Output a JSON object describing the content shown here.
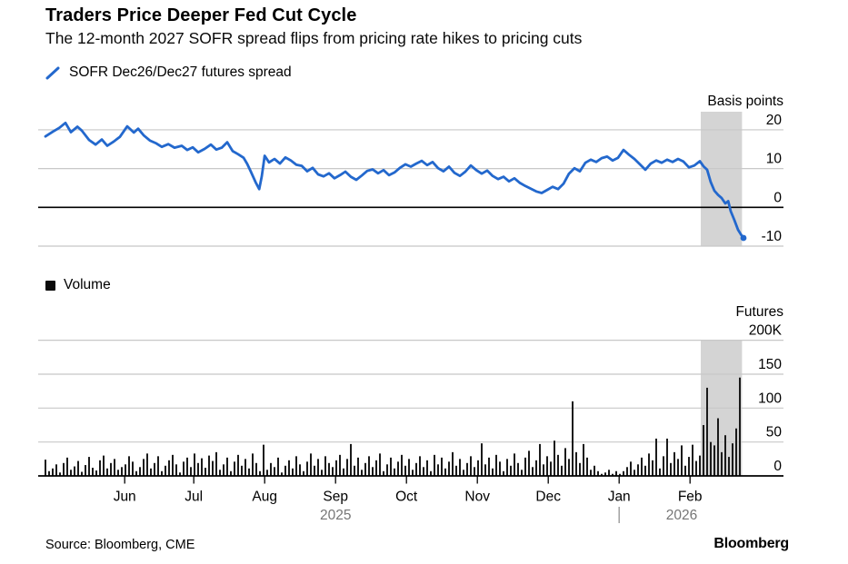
{
  "header": {
    "title": "Traders Price Deeper Fed Cut Cycle",
    "subtitle": "The 12-month 2027 SOFR spread flips from pricing rate hikes to pricing cuts"
  },
  "legends": {
    "spread": "SOFR Dec26/Dec27 futures spread",
    "volume": "Volume"
  },
  "footer": {
    "source": "Source: Bloomberg, CME",
    "brand": "Bloomberg"
  },
  "colors": {
    "line_blue": "#2368cd",
    "grid_gray": "#c8c8c8",
    "band_gray": "#d4d4d4",
    "bar_black": "#1a1a1a",
    "year_gray": "#767676",
    "axis_black": "#000000"
  },
  "chart_data": [
    {
      "type": "line",
      "name": "SOFR Dec26/Dec27 futures spread",
      "ylabel": "Basis points",
      "ylim": [
        -13,
        24.7
      ],
      "grid": true,
      "legend_position": "top-left",
      "yticks": [
        {
          "v": 20,
          "label": "20"
        },
        {
          "v": 10,
          "label": "10"
        },
        {
          "v": 0,
          "label": "0"
        },
        {
          "v": -10,
          "label": "-10"
        }
      ],
      "zero_line": 0,
      "highlight_band_t": [
        180.25,
        191.6
      ],
      "x_unit": "trading-day index, May 2025 = 0",
      "points": [
        [
          0,
          18.3
        ],
        [
          2,
          19.5
        ],
        [
          3.8,
          20.5
        ],
        [
          5.5,
          21.8
        ],
        [
          7,
          19.4
        ],
        [
          8.8,
          20.8
        ],
        [
          10,
          19.8
        ],
        [
          12,
          17.4
        ],
        [
          13.8,
          16.2
        ],
        [
          15.5,
          17.5
        ],
        [
          17,
          15.9
        ],
        [
          18.8,
          17.0
        ],
        [
          20.5,
          18.2
        ],
        [
          22.5,
          20.9
        ],
        [
          24.3,
          19.3
        ],
        [
          25.5,
          20.3
        ],
        [
          27,
          18.6
        ],
        [
          28.8,
          17.2
        ],
        [
          30.5,
          16.5
        ],
        [
          32,
          15.6
        ],
        [
          33.8,
          16.3
        ],
        [
          35.5,
          15.4
        ],
        [
          37.5,
          15.9
        ],
        [
          39,
          14.8
        ],
        [
          40.5,
          15.5
        ],
        [
          42,
          14.2
        ],
        [
          43.8,
          15.1
        ],
        [
          45.5,
          16.2
        ],
        [
          47,
          14.9
        ],
        [
          48.5,
          15.4
        ],
        [
          50,
          16.8
        ],
        [
          51.5,
          14.5
        ],
        [
          53,
          13.7
        ],
        [
          54.5,
          12.8
        ],
        [
          55.5,
          11.2
        ],
        [
          56.5,
          9.2
        ],
        [
          57.8,
          6.5
        ],
        [
          58.8,
          4.7
        ],
        [
          59.5,
          8.0
        ],
        [
          60.3,
          13.3
        ],
        [
          61.5,
          11.6
        ],
        [
          63,
          12.5
        ],
        [
          64.5,
          11.3
        ],
        [
          66,
          12.9
        ],
        [
          67.5,
          12.1
        ],
        [
          69,
          11.0
        ],
        [
          70.5,
          10.7
        ],
        [
          72,
          9.3
        ],
        [
          73.5,
          10.2
        ],
        [
          75,
          8.5
        ],
        [
          76.5,
          8.0
        ],
        [
          78,
          8.8
        ],
        [
          79.5,
          7.5
        ],
        [
          81,
          8.3
        ],
        [
          82.5,
          9.2
        ],
        [
          84,
          7.9
        ],
        [
          85.5,
          7.1
        ],
        [
          87,
          8.2
        ],
        [
          88.5,
          9.4
        ],
        [
          90,
          9.8
        ],
        [
          91.5,
          8.8
        ],
        [
          93,
          9.6
        ],
        [
          94.5,
          8.3
        ],
        [
          96,
          9.0
        ],
        [
          97.5,
          10.2
        ],
        [
          99,
          11.1
        ],
        [
          100.5,
          10.5
        ],
        [
          102,
          11.3
        ],
        [
          103.5,
          12.0
        ],
        [
          105,
          10.9
        ],
        [
          106.5,
          11.7
        ],
        [
          108,
          10.1
        ],
        [
          109.5,
          9.3
        ],
        [
          111,
          10.5
        ],
        [
          112.5,
          8.9
        ],
        [
          114,
          8.1
        ],
        [
          115.5,
          9.2
        ],
        [
          117,
          10.8
        ],
        [
          118.5,
          9.6
        ],
        [
          120,
          8.7
        ],
        [
          121.5,
          9.5
        ],
        [
          123,
          8.1
        ],
        [
          124.5,
          7.3
        ],
        [
          126,
          7.9
        ],
        [
          127.5,
          6.7
        ],
        [
          129,
          7.5
        ],
        [
          130.5,
          6.3
        ],
        [
          132,
          5.5
        ],
        [
          133.5,
          4.8
        ],
        [
          135,
          4.1
        ],
        [
          136.5,
          3.7
        ],
        [
          138,
          4.5
        ],
        [
          139.5,
          5.3
        ],
        [
          141,
          4.7
        ],
        [
          142.5,
          6.1
        ],
        [
          144,
          8.7
        ],
        [
          145.5,
          10.1
        ],
        [
          147,
          9.3
        ],
        [
          148.5,
          11.5
        ],
        [
          150,
          12.3
        ],
        [
          151.5,
          11.7
        ],
        [
          153,
          12.7
        ],
        [
          154.5,
          13.1
        ],
        [
          156,
          12.1
        ],
        [
          157.5,
          12.8
        ],
        [
          159,
          14.8
        ],
        [
          160.5,
          13.6
        ],
        [
          162,
          12.5
        ],
        [
          163.5,
          11.1
        ],
        [
          165,
          9.7
        ],
        [
          166.5,
          11.3
        ],
        [
          168,
          12.1
        ],
        [
          169.5,
          11.5
        ],
        [
          171,
          12.3
        ],
        [
          172.5,
          11.7
        ],
        [
          174,
          12.5
        ],
        [
          175.5,
          11.8
        ],
        [
          177,
          10.3
        ],
        [
          178.5,
          10.8
        ],
        [
          180,
          11.9
        ],
        [
          181,
          10.6
        ],
        [
          182,
          9.7
        ],
        [
          183,
          6.5
        ],
        [
          184,
          4.3
        ],
        [
          185,
          3.2
        ],
        [
          186,
          2.4
        ],
        [
          187,
          1.0
        ],
        [
          187.8,
          1.6
        ],
        [
          188.5,
          -1.0
        ],
        [
          189.5,
          -3.3
        ],
        [
          190.5,
          -5.8
        ],
        [
          191.3,
          -7.0
        ],
        [
          192,
          -7.9
        ]
      ]
    },
    {
      "type": "bar",
      "name": "Volume",
      "ylabel": "Futures",
      "ylim": [
        0,
        200
      ],
      "grid": true,
      "yticks": [
        {
          "v": 200,
          "label": "200K"
        },
        {
          "v": 150,
          "label": "150"
        },
        {
          "v": 100,
          "label": "100"
        },
        {
          "v": 50,
          "label": "50"
        },
        {
          "v": 0,
          "label": "0"
        }
      ],
      "highlight_band_t": [
        180.25,
        191.6
      ],
      "x_unit": "trading-day index, May 2025 = 0 (thousands of contracts)",
      "values": [
        24,
        7,
        11,
        17,
        5,
        19,
        27,
        9,
        14,
        22,
        6,
        16,
        28,
        12,
        8,
        23,
        30,
        11,
        19,
        25,
        9,
        13,
        17,
        29,
        21,
        7,
        13,
        25,
        33,
        11,
        19,
        29,
        7,
        15,
        23,
        31,
        17,
        5,
        21,
        27,
        13,
        33,
        19,
        26,
        12,
        30,
        22,
        35,
        9,
        17,
        27,
        7,
        21,
        31,
        15,
        25,
        11,
        33,
        19,
        7,
        46,
        9,
        19,
        13,
        27,
        5,
        15,
        23,
        11,
        29,
        17,
        7,
        21,
        33,
        15,
        25,
        9,
        29,
        19,
        13,
        23,
        31,
        11,
        25,
        47,
        15,
        27,
        9,
        19,
        29,
        13,
        23,
        33,
        7,
        17,
        27,
        11,
        21,
        31,
        15,
        25,
        9,
        19,
        29,
        13,
        23,
        7,
        31,
        17,
        27,
        11,
        21,
        35,
        15,
        25,
        9,
        19,
        29,
        13,
        23,
        48,
        17,
        27,
        11,
        31,
        21,
        7,
        25,
        15,
        33,
        19,
        9,
        27,
        37,
        13,
        23,
        47,
        17,
        29,
        21,
        52,
        31,
        15,
        41,
        25,
        110,
        35,
        19,
        47,
        27,
        9,
        15,
        7,
        3,
        5,
        9,
        3,
        7,
        3,
        7,
        13,
        21,
        9,
        17,
        27,
        15,
        33,
        23,
        55,
        11,
        29,
        55,
        19,
        35,
        25,
        45,
        15,
        28,
        46,
        22,
        30,
        75,
        130,
        50,
        45,
        85,
        35,
        60,
        28,
        48,
        70,
        145
      ],
      "months": [
        {
          "label": "Jun",
          "t": 21.8
        },
        {
          "label": "Jul",
          "t": 40.8
        },
        {
          "label": "Aug",
          "t": 60.3
        },
        {
          "label": "Sep",
          "t": 79.8
        },
        {
          "label": "Oct",
          "t": 99.3
        },
        {
          "label": "Nov",
          "t": 118.8
        },
        {
          "label": "Dec",
          "t": 138.3
        },
        {
          "label": "Jan",
          "t": 157.8
        },
        {
          "label": "Feb",
          "t": 177.3
        }
      ],
      "years": [
        {
          "label": "2025",
          "t": 79.8
        },
        {
          "label": "2026",
          "t": 175,
          "divider_t": 157.8
        }
      ]
    }
  ]
}
